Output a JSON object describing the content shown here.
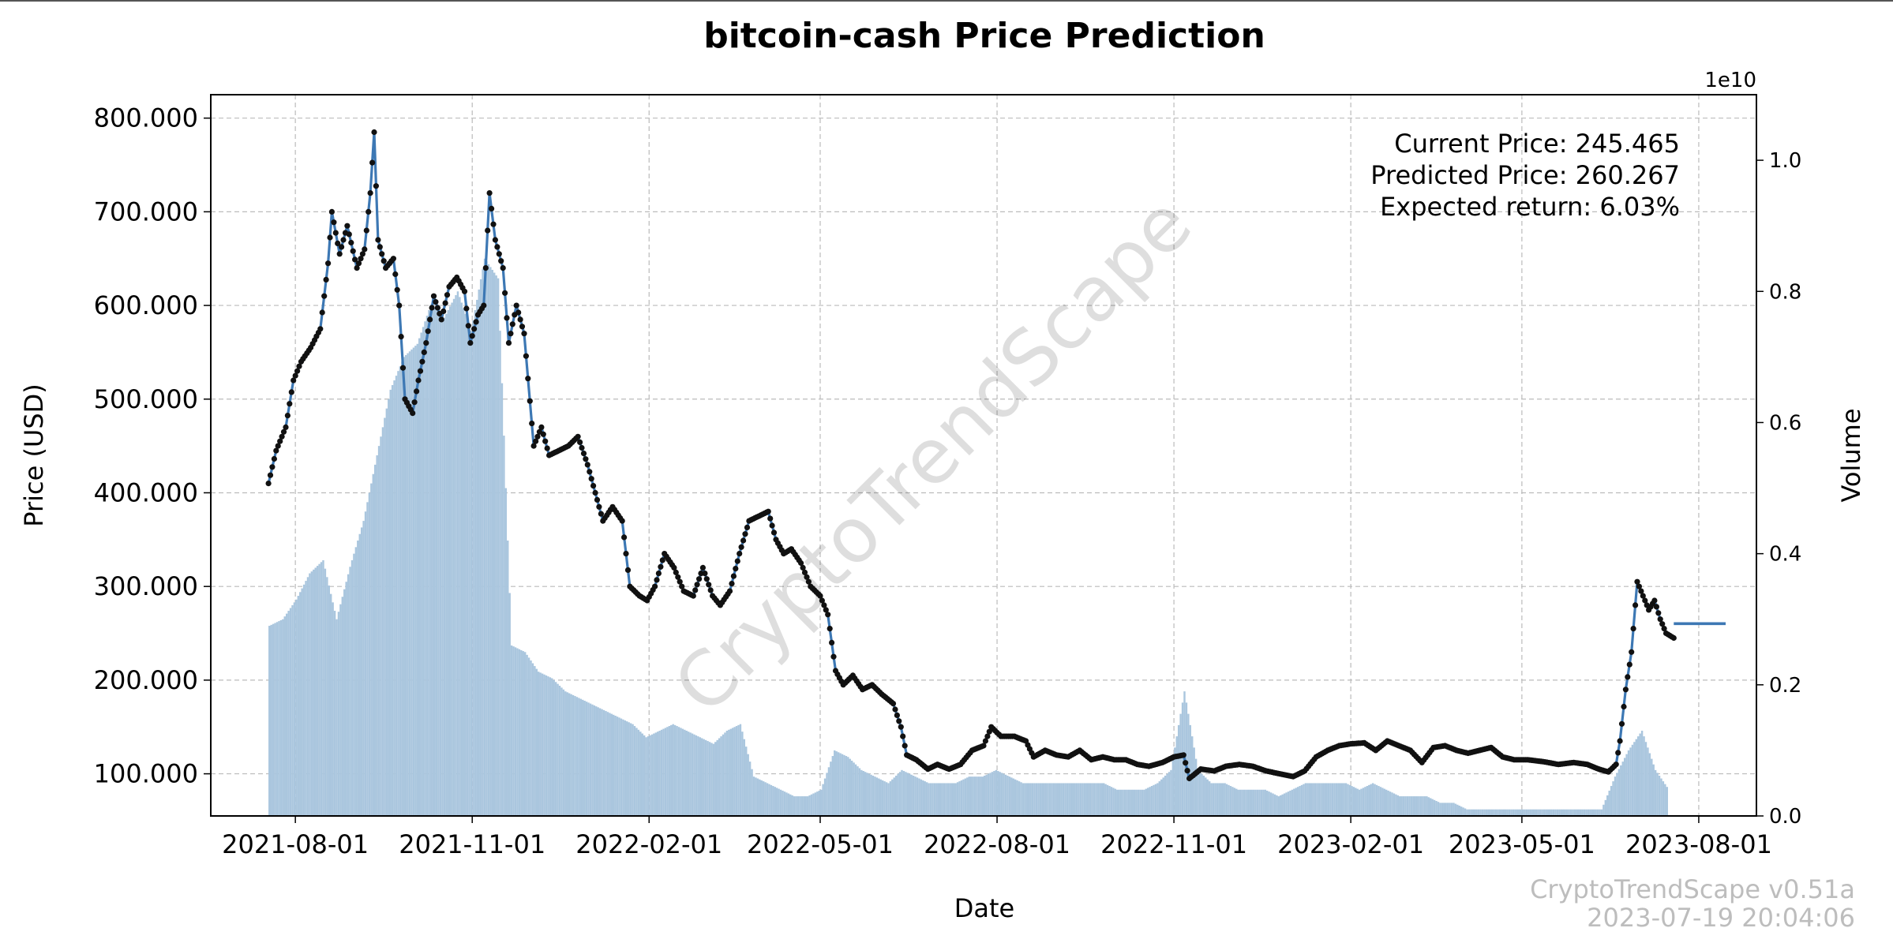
{
  "chart_data": {
    "type": "line",
    "title": "bitcoin-cash Price Prediction",
    "xlabel": "Date",
    "ylabel": "Price (USD)",
    "y2label": "Volume",
    "y2_exponent": "1e10",
    "ylim": [
      55,
      825
    ],
    "y2lim": [
      0,
      1.1
    ],
    "x_range": [
      "2021-06-18",
      "2023-08-31"
    ],
    "x_ticks": [
      "2021-08-01",
      "2021-11-01",
      "2022-02-01",
      "2022-05-01",
      "2022-08-01",
      "2022-11-01",
      "2023-02-01",
      "2023-05-01",
      "2023-08-01"
    ],
    "y_ticks": [
      100,
      200,
      300,
      400,
      500,
      600,
      700,
      800
    ],
    "y_tick_labels": [
      "100.000",
      "200.000",
      "300.000",
      "400.000",
      "500.000",
      "600.000",
      "700.000",
      "800.000"
    ],
    "y2_ticks": [
      0.0,
      0.2,
      0.4,
      0.6,
      0.8,
      1.0
    ],
    "y2_tick_labels": [
      "0.0",
      "0.2",
      "0.4",
      "0.6",
      "0.8",
      "1.0"
    ],
    "grid": true,
    "series": [
      {
        "name": "Price",
        "color": "#3d78b4",
        "marker_color": "#111111",
        "points": [
          [
            "2021-07-18",
            410
          ],
          [
            "2021-07-22",
            445
          ],
          [
            "2021-07-27",
            470
          ],
          [
            "2021-07-31",
            520
          ],
          [
            "2021-08-04",
            540
          ],
          [
            "2021-08-09",
            555
          ],
          [
            "2021-08-14",
            575
          ],
          [
            "2021-08-18",
            645
          ],
          [
            "2021-08-20",
            700
          ],
          [
            "2021-08-24",
            655
          ],
          [
            "2021-08-28",
            685
          ],
          [
            "2021-09-02",
            640
          ],
          [
            "2021-09-06",
            660
          ],
          [
            "2021-09-09",
            720
          ],
          [
            "2021-09-11",
            785
          ],
          [
            "2021-09-13",
            670
          ],
          [
            "2021-09-17",
            640
          ],
          [
            "2021-09-21",
            650
          ],
          [
            "2021-09-24",
            600
          ],
          [
            "2021-09-27",
            500
          ],
          [
            "2021-10-01",
            485
          ],
          [
            "2021-10-04",
            520
          ],
          [
            "2021-10-08",
            560
          ],
          [
            "2021-10-12",
            610
          ],
          [
            "2021-10-16",
            585
          ],
          [
            "2021-10-20",
            620
          ],
          [
            "2021-10-24",
            630
          ],
          [
            "2021-10-28",
            615
          ],
          [
            "2021-10-31",
            560
          ],
          [
            "2021-11-04",
            590
          ],
          [
            "2021-11-07",
            600
          ],
          [
            "2021-11-10",
            720
          ],
          [
            "2021-11-13",
            670
          ],
          [
            "2021-11-17",
            640
          ],
          [
            "2021-11-20",
            560
          ],
          [
            "2021-11-24",
            600
          ],
          [
            "2021-11-28",
            570
          ],
          [
            "2021-12-03",
            450
          ],
          [
            "2021-12-07",
            470
          ],
          [
            "2021-12-11",
            440
          ],
          [
            "2021-12-16",
            445
          ],
          [
            "2021-12-21",
            450
          ],
          [
            "2021-12-26",
            460
          ],
          [
            "2021-12-31",
            430
          ],
          [
            "2022-01-04",
            400
          ],
          [
            "2022-01-08",
            370
          ],
          [
            "2022-01-13",
            385
          ],
          [
            "2022-01-18",
            370
          ],
          [
            "2022-01-22",
            300
          ],
          [
            "2022-01-27",
            290
          ],
          [
            "2022-01-31",
            285
          ],
          [
            "2022-02-04",
            300
          ],
          [
            "2022-02-09",
            335
          ],
          [
            "2022-02-14",
            320
          ],
          [
            "2022-02-19",
            295
          ],
          [
            "2022-02-24",
            290
          ],
          [
            "2022-03-01",
            320
          ],
          [
            "2022-03-06",
            290
          ],
          [
            "2022-03-10",
            280
          ],
          [
            "2022-03-15",
            295
          ],
          [
            "2022-03-20",
            335
          ],
          [
            "2022-03-25",
            370
          ],
          [
            "2022-03-30",
            375
          ],
          [
            "2022-04-04",
            380
          ],
          [
            "2022-04-08",
            350
          ],
          [
            "2022-04-12",
            335
          ],
          [
            "2022-04-16",
            340
          ],
          [
            "2022-04-21",
            325
          ],
          [
            "2022-04-26",
            300
          ],
          [
            "2022-05-01",
            290
          ],
          [
            "2022-05-05",
            270
          ],
          [
            "2022-05-09",
            210
          ],
          [
            "2022-05-13",
            195
          ],
          [
            "2022-05-18",
            205
          ],
          [
            "2022-05-23",
            190
          ],
          [
            "2022-05-28",
            195
          ],
          [
            "2022-06-02",
            185
          ],
          [
            "2022-06-08",
            175
          ],
          [
            "2022-06-12",
            150
          ],
          [
            "2022-06-15",
            120
          ],
          [
            "2022-06-20",
            115
          ],
          [
            "2022-06-26",
            105
          ],
          [
            "2022-07-01",
            110
          ],
          [
            "2022-07-07",
            105
          ],
          [
            "2022-07-13",
            110
          ],
          [
            "2022-07-19",
            125
          ],
          [
            "2022-07-25",
            130
          ],
          [
            "2022-07-29",
            150
          ],
          [
            "2022-08-03",
            140
          ],
          [
            "2022-08-10",
            140
          ],
          [
            "2022-08-16",
            135
          ],
          [
            "2022-08-20",
            118
          ],
          [
            "2022-08-26",
            125
          ],
          [
            "2022-09-01",
            120
          ],
          [
            "2022-09-07",
            118
          ],
          [
            "2022-09-13",
            125
          ],
          [
            "2022-09-19",
            115
          ],
          [
            "2022-09-25",
            118
          ],
          [
            "2022-10-01",
            115
          ],
          [
            "2022-10-07",
            115
          ],
          [
            "2022-10-13",
            110
          ],
          [
            "2022-10-19",
            108
          ],
          [
            "2022-10-26",
            112
          ],
          [
            "2022-11-01",
            118
          ],
          [
            "2022-11-06",
            120
          ],
          [
            "2022-11-09",
            95
          ],
          [
            "2022-11-15",
            105
          ],
          [
            "2022-11-22",
            103
          ],
          [
            "2022-11-28",
            108
          ],
          [
            "2022-12-05",
            110
          ],
          [
            "2022-12-12",
            108
          ],
          [
            "2022-12-19",
            103
          ],
          [
            "2022-12-26",
            100
          ],
          [
            "2023-01-02",
            97
          ],
          [
            "2023-01-08",
            103
          ],
          [
            "2023-01-14",
            118
          ],
          [
            "2023-01-20",
            125
          ],
          [
            "2023-01-26",
            130
          ],
          [
            "2023-02-01",
            132
          ],
          [
            "2023-02-08",
            133
          ],
          [
            "2023-02-14",
            125
          ],
          [
            "2023-02-20",
            135
          ],
          [
            "2023-02-26",
            130
          ],
          [
            "2023-03-04",
            125
          ],
          [
            "2023-03-10",
            112
          ],
          [
            "2023-03-16",
            128
          ],
          [
            "2023-03-22",
            130
          ],
          [
            "2023-03-28",
            125
          ],
          [
            "2023-04-03",
            122
          ],
          [
            "2023-04-09",
            125
          ],
          [
            "2023-04-15",
            128
          ],
          [
            "2023-04-21",
            118
          ],
          [
            "2023-04-27",
            115
          ],
          [
            "2023-05-04",
            115
          ],
          [
            "2023-05-12",
            113
          ],
          [
            "2023-05-20",
            110
          ],
          [
            "2023-05-28",
            112
          ],
          [
            "2023-06-04",
            110
          ],
          [
            "2023-06-10",
            105
          ],
          [
            "2023-06-15",
            102
          ],
          [
            "2023-06-19",
            110
          ],
          [
            "2023-06-21",
            135
          ],
          [
            "2023-06-24",
            190
          ],
          [
            "2023-06-27",
            230
          ],
          [
            "2023-06-30",
            305
          ],
          [
            "2023-07-03",
            290
          ],
          [
            "2023-07-06",
            275
          ],
          [
            "2023-07-09",
            285
          ],
          [
            "2023-07-12",
            265
          ],
          [
            "2023-07-15",
            250
          ],
          [
            "2023-07-19",
            245
          ]
        ]
      },
      {
        "name": "Prediction",
        "color": "#3d78b4",
        "points": [
          [
            "2023-07-19",
            260.267
          ],
          [
            "2023-08-15",
            260.267
          ]
        ]
      }
    ],
    "volume": {
      "color": "#aac6de",
      "points": [
        [
          "2021-07-18",
          0.29
        ],
        [
          "2021-07-25",
          0.3
        ],
        [
          "2021-08-01",
          0.33
        ],
        [
          "2021-08-08",
          0.37
        ],
        [
          "2021-08-15",
          0.39
        ],
        [
          "2021-08-22",
          0.3
        ],
        [
          "2021-08-29",
          0.38
        ],
        [
          "2021-09-05",
          0.45
        ],
        [
          "2021-09-12",
          0.55
        ],
        [
          "2021-09-19",
          0.65
        ],
        [
          "2021-09-26",
          0.7
        ],
        [
          "2021-10-03",
          0.72
        ],
        [
          "2021-10-10",
          0.78
        ],
        [
          "2021-10-17",
          0.76
        ],
        [
          "2021-10-24",
          0.8
        ],
        [
          "2021-10-31",
          0.74
        ],
        [
          "2021-11-07",
          0.85
        ],
        [
          "2021-11-14",
          0.82
        ],
        [
          "2021-11-21",
          0.26
        ],
        [
          "2021-11-28",
          0.25
        ],
        [
          "2021-12-05",
          0.22
        ],
        [
          "2021-12-12",
          0.21
        ],
        [
          "2021-12-19",
          0.19
        ],
        [
          "2021-12-26",
          0.18
        ],
        [
          "2022-01-02",
          0.17
        ],
        [
          "2022-01-09",
          0.16
        ],
        [
          "2022-01-16",
          0.15
        ],
        [
          "2022-01-23",
          0.14
        ],
        [
          "2022-01-30",
          0.12
        ],
        [
          "2022-02-06",
          0.13
        ],
        [
          "2022-02-13",
          0.14
        ],
        [
          "2022-02-20",
          0.13
        ],
        [
          "2022-02-27",
          0.12
        ],
        [
          "2022-03-06",
          0.11
        ],
        [
          "2022-03-13",
          0.13
        ],
        [
          "2022-03-20",
          0.14
        ],
        [
          "2022-03-27",
          0.06
        ],
        [
          "2022-04-03",
          0.05
        ],
        [
          "2022-04-10",
          0.04
        ],
        [
          "2022-04-17",
          0.03
        ],
        [
          "2022-04-24",
          0.03
        ],
        [
          "2022-05-01",
          0.04
        ],
        [
          "2022-05-08",
          0.1
        ],
        [
          "2022-05-15",
          0.09
        ],
        [
          "2022-05-22",
          0.07
        ],
        [
          "2022-05-29",
          0.06
        ],
        [
          "2022-06-05",
          0.05
        ],
        [
          "2022-06-12",
          0.07
        ],
        [
          "2022-06-19",
          0.06
        ],
        [
          "2022-06-26",
          0.05
        ],
        [
          "2022-07-03",
          0.05
        ],
        [
          "2022-07-10",
          0.05
        ],
        [
          "2022-07-17",
          0.06
        ],
        [
          "2022-07-24",
          0.06
        ],
        [
          "2022-07-31",
          0.07
        ],
        [
          "2022-08-07",
          0.06
        ],
        [
          "2022-08-14",
          0.05
        ],
        [
          "2022-08-21",
          0.05
        ],
        [
          "2022-08-28",
          0.05
        ],
        [
          "2022-09-04",
          0.05
        ],
        [
          "2022-09-11",
          0.05
        ],
        [
          "2022-09-18",
          0.05
        ],
        [
          "2022-09-25",
          0.05
        ],
        [
          "2022-10-02",
          0.04
        ],
        [
          "2022-10-09",
          0.04
        ],
        [
          "2022-10-16",
          0.04
        ],
        [
          "2022-10-23",
          0.05
        ],
        [
          "2022-10-30",
          0.07
        ],
        [
          "2022-11-06",
          0.19
        ],
        [
          "2022-11-13",
          0.07
        ],
        [
          "2022-11-20",
          0.05
        ],
        [
          "2022-11-27",
          0.05
        ],
        [
          "2022-12-04",
          0.04
        ],
        [
          "2022-12-11",
          0.04
        ],
        [
          "2022-12-18",
          0.04
        ],
        [
          "2022-12-25",
          0.03
        ],
        [
          "2023-01-01",
          0.04
        ],
        [
          "2023-01-08",
          0.05
        ],
        [
          "2023-01-15",
          0.05
        ],
        [
          "2023-01-22",
          0.05
        ],
        [
          "2023-01-29",
          0.05
        ],
        [
          "2023-02-05",
          0.04
        ],
        [
          "2023-02-12",
          0.05
        ],
        [
          "2023-02-19",
          0.04
        ],
        [
          "2023-02-26",
          0.03
        ],
        [
          "2023-03-05",
          0.03
        ],
        [
          "2023-03-12",
          0.03
        ],
        [
          "2023-03-19",
          0.02
        ],
        [
          "2023-03-26",
          0.02
        ],
        [
          "2023-04-02",
          0.01
        ],
        [
          "2023-04-09",
          0.01
        ],
        [
          "2023-04-16",
          0.01
        ],
        [
          "2023-04-23",
          0.01
        ],
        [
          "2023-04-30",
          0.01
        ],
        [
          "2023-05-07",
          0.01
        ],
        [
          "2023-05-14",
          0.01
        ],
        [
          "2023-05-21",
          0.01
        ],
        [
          "2023-05-28",
          0.01
        ],
        [
          "2023-06-04",
          0.01
        ],
        [
          "2023-06-11",
          0.01
        ],
        [
          "2023-06-18",
          0.06
        ],
        [
          "2023-06-25",
          0.1
        ],
        [
          "2023-07-02",
          0.13
        ],
        [
          "2023-07-09",
          0.07
        ],
        [
          "2023-07-16",
          0.04
        ]
      ]
    },
    "annotation": {
      "current_price": "Current Price: 245.465",
      "predicted_price": "Predicted Price: 260.267",
      "expected_return": "Expected return: 6.03%"
    },
    "watermark": "CryptoTrendScape",
    "footer_version": "CryptoTrendScape v0.51a",
    "footer_timestamp": "2023-07-19 20:04:06"
  }
}
